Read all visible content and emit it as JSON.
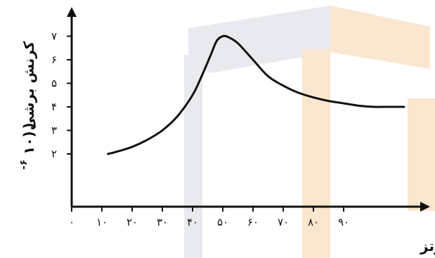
{
  "chart_data": {
    "type": "line",
    "title": "",
    "xlabel": "فرکانس- هرتز",
    "ylabel": "کرنش برشی",
    "ylabel_unit": "(۱۰",
    "ylabel_exponent": "۶-",
    "xlim": [
      0,
      120
    ],
    "ylim": [
      0,
      7.7
    ],
    "x_ticks": [
      {
        "value": 0,
        "label": "۰"
      },
      {
        "value": 10,
        "label": "۱۰"
      },
      {
        "value": 20,
        "label": "۲۰"
      },
      {
        "value": 30,
        "label": "۳۰"
      },
      {
        "value": 40,
        "label": "۴۰"
      },
      {
        "value": 50,
        "label": "۵۰"
      },
      {
        "value": 60,
        "label": "۶۰"
      },
      {
        "value": 70,
        "label": "۷۰"
      },
      {
        "value": 80,
        "label": "۸۰"
      },
      {
        "value": 90,
        "label": "۹۰"
      }
    ],
    "y_ticks": [
      {
        "value": 2,
        "label": "۲"
      },
      {
        "value": 3,
        "label": "۳"
      },
      {
        "value": 4,
        "label": "۴"
      },
      {
        "value": 5,
        "label": "۵"
      },
      {
        "value": 6,
        "label": "۶"
      },
      {
        "value": 7,
        "label": "۷"
      }
    ],
    "grid": false,
    "series": [
      {
        "x": [
          12,
          15,
          20,
          25,
          30,
          35,
          40,
          43,
          46,
          48,
          50,
          52,
          55,
          60,
          65,
          70,
          75,
          80,
          85,
          90,
          95,
          100,
          105,
          110
        ],
        "y": [
          2.0,
          2.1,
          2.3,
          2.6,
          3.0,
          3.6,
          4.5,
          5.3,
          6.2,
          6.8,
          7.0,
          6.95,
          6.7,
          6.0,
          5.3,
          4.9,
          4.6,
          4.4,
          4.25,
          4.15,
          4.05,
          4.0,
          4.0,
          4.0
        ]
      }
    ],
    "colors": {
      "line": "#111111",
      "axis": "#111111"
    }
  }
}
